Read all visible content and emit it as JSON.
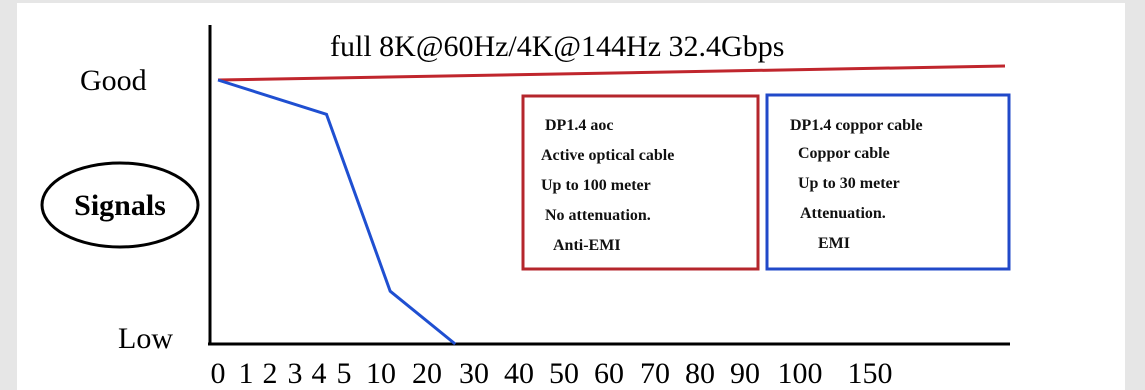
{
  "chart_data": {
    "type": "line",
    "title": "full 8K@60Hz/4K@144Hz 32.4Gbps",
    "ylabel": "Signals",
    "y_ticks": [
      "Good",
      "Low"
    ],
    "categories": [
      "0",
      "1",
      "2",
      "3",
      "4",
      "5",
      "10",
      "20",
      "30",
      "40",
      "50",
      "60",
      "70",
      "80",
      "90",
      "100",
      "150"
    ],
    "ylim": [
      0,
      1
    ],
    "series": [
      {
        "color": "#c0262d",
        "points": [
          [
            0,
            1.0
          ],
          [
            16,
            1.05
          ]
        ]
      },
      {
        "color": "#1f4fd1",
        "points": [
          [
            0,
            1.0
          ],
          [
            4.3,
            0.87
          ],
          [
            6.2,
            0.2
          ],
          [
            7.6,
            0.0
          ]
        ]
      }
    ],
    "annotations": [
      {
        "border": "#b5262c",
        "lines": [
          "DP1.4 aoc",
          "Active optical cable",
          "Up to 100 meter",
          "No attenuation.",
          "Anti-EMI"
        ]
      },
      {
        "border": "#2149c9",
        "lines": [
          "DP1.4 coppor cable",
          "Coppor cable",
          "Up to 30 meter",
          "Attenuation.",
          "EMI"
        ]
      }
    ]
  }
}
